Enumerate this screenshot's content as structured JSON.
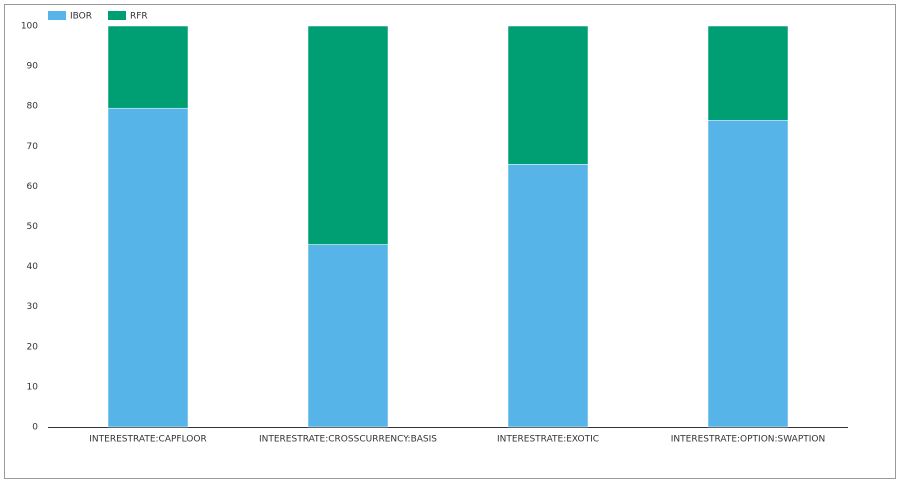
{
  "chart_data": {
    "type": "stacked_bar",
    "categories": [
      "INTERESTRATE:CAPFLOOR",
      "INTERESTRATE:CROSSCURRENCY:BASIS",
      "INTERESTRATE:EXOTIC",
      "INTERESTRATE:OPTION:SWAPTION"
    ],
    "series": [
      {
        "name": "IBOR",
        "color": "#56b4e9",
        "values": [
          79.5,
          45.5,
          65.5,
          76.5
        ]
      },
      {
        "name": "RFR",
        "color": "#009e73",
        "values": [
          20.5,
          54.5,
          34.5,
          23.5
        ]
      }
    ],
    "ylim": [
      0,
      100
    ],
    "yticks": [
      0,
      10,
      20,
      30,
      40,
      50,
      60,
      70,
      80,
      90,
      100
    ],
    "grid": false,
    "legend": "top-left"
  }
}
